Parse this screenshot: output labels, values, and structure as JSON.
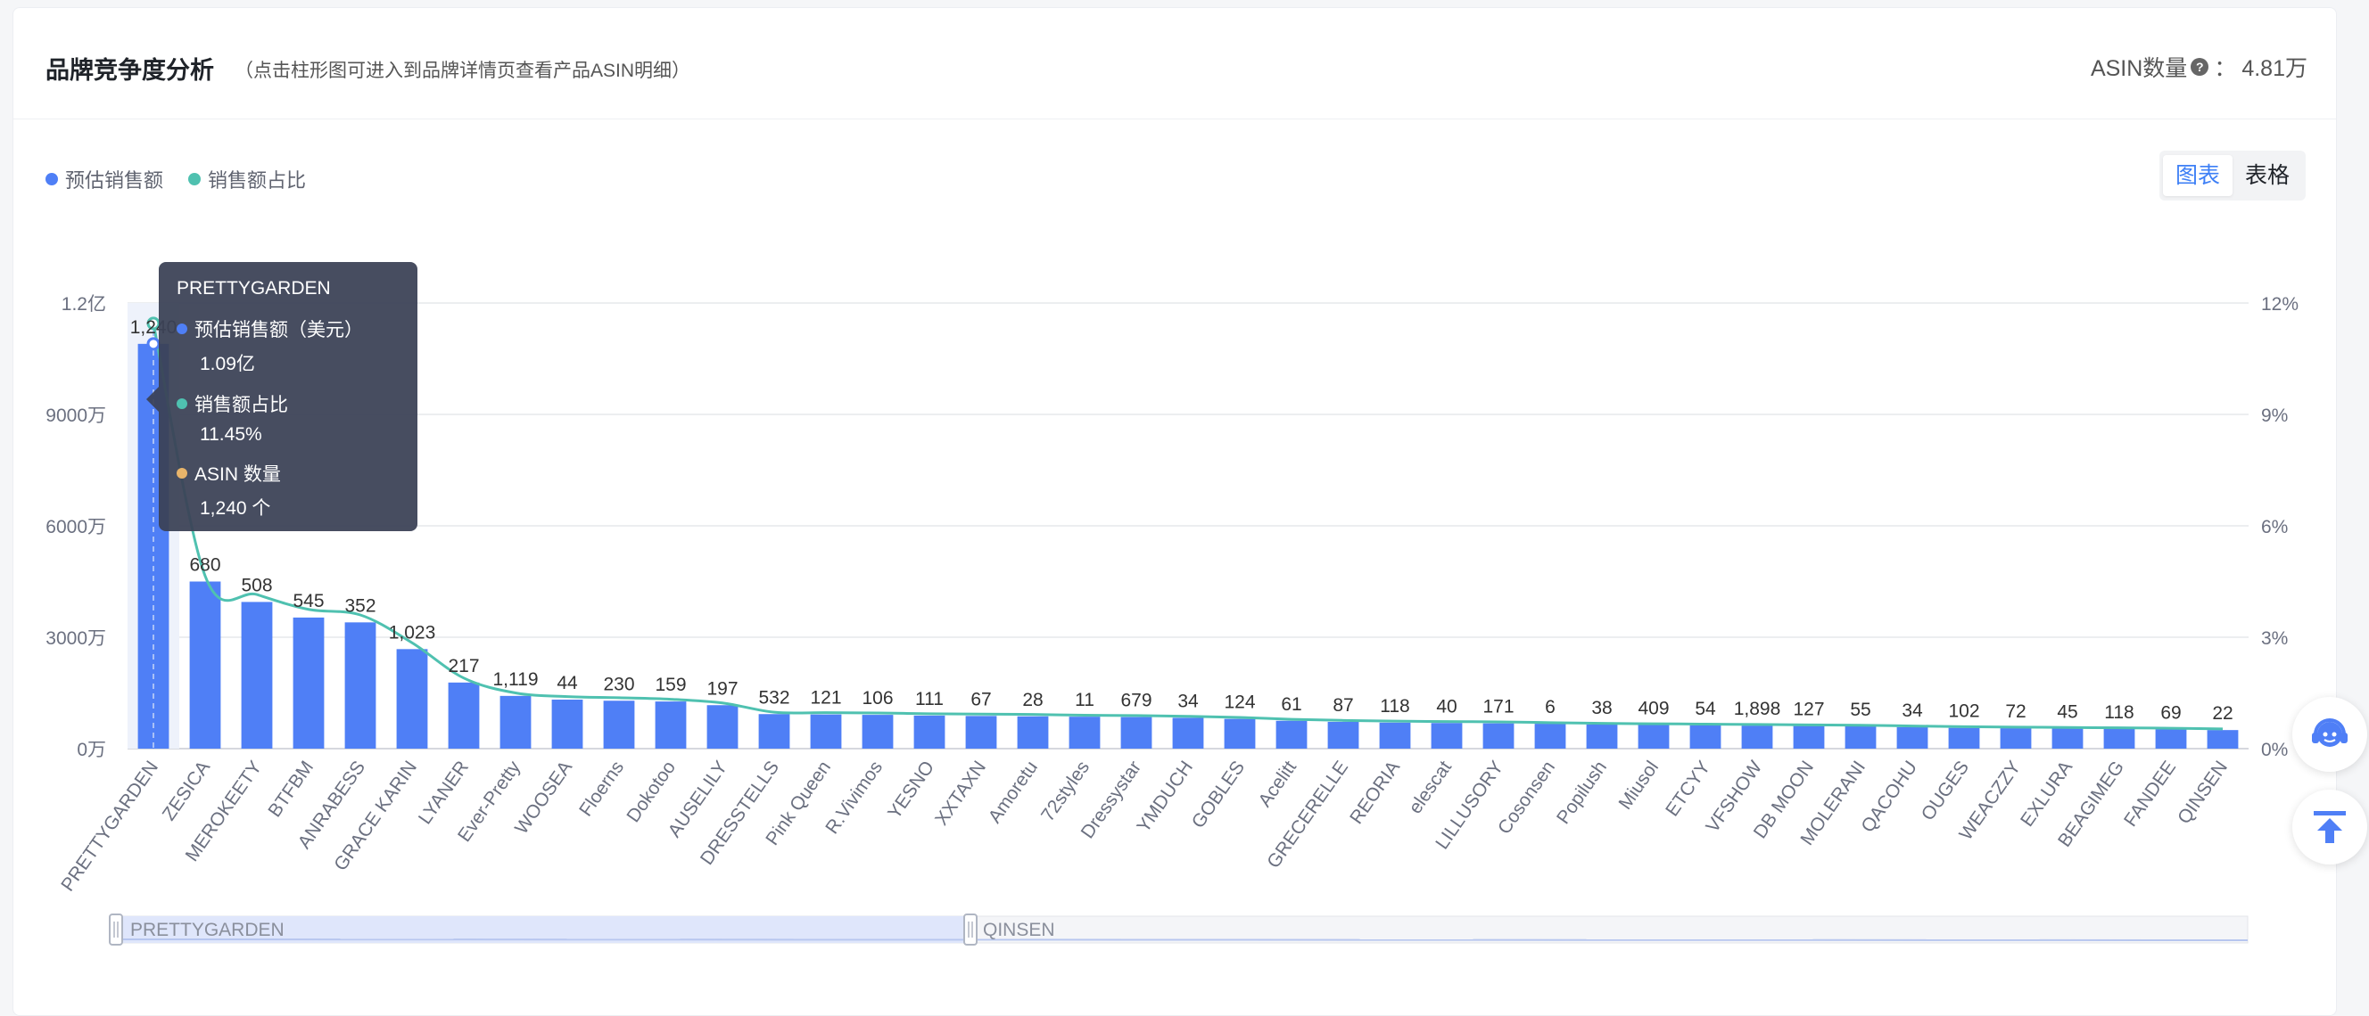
{
  "header": {
    "title": "品牌竞争度分析",
    "subtitle": "（点击柱形图可进入到品牌详情页查看产品ASIN明细）",
    "asin_label": "ASIN数量",
    "asin_sep": "：",
    "asin_value": "4.81万"
  },
  "legend": [
    {
      "label": "预估销售额",
      "color": "#4f7ff6"
    },
    {
      "label": "销售额占比",
      "color": "#4fc1b0"
    }
  ],
  "toggle": {
    "chart": "图表",
    "table": "表格"
  },
  "tooltip": {
    "brand": "PRETTYGARDEN",
    "sales_label": "预估销售额（美元）",
    "sales_value": "1.09亿",
    "share_label": "销售额占比",
    "share_value": "11.45%",
    "asin_label": "ASIN 数量",
    "asin_value": "1,240 个",
    "asin_color": "#e8b46a"
  },
  "zoom": {
    "start": "PRETTYGARDEN",
    "end": "QINSEN"
  },
  "colors": {
    "bar": "#4f7ff6",
    "line": "#4fc1b0"
  },
  "chart_data": {
    "type": "bar",
    "categories": [
      "PRETTYGARDEN",
      "ZESICA",
      "MEROKEETY",
      "BTFBM",
      "ANRABESS",
      "GRACE KARIN",
      "LYANER",
      "Ever-Pretty",
      "WOOSEA",
      "Floerns",
      "Dokotoo",
      "AUSELILY",
      "DRESSTELLS",
      "Pink Queen",
      "R.Vivimos",
      "YESNO",
      "XXTAXN",
      "Amoretu",
      "72styles",
      "Dressystar",
      "YMDUCH",
      "GOBLES",
      "Acelitt",
      "GRECERELLE",
      "REORIA",
      "elescat",
      "LILLUSORY",
      "Cosonsen",
      "Popilush",
      "Miusol",
      "ETCYY",
      "VFSHOW",
      "DB MOON",
      "MOLERANI",
      "QACOHU",
      "OUGES",
      "WEACZZY",
      "EXLURA",
      "BEAGIMEG",
      "FANDEE",
      "QINSEN"
    ],
    "series": [
      {
        "name": "预估销售额",
        "axis": "left",
        "values": [
          10900,
          4500,
          3950,
          3530,
          3400,
          2680,
          1780,
          1420,
          1320,
          1290,
          1270,
          1170,
          930,
          920,
          910,
          890,
          880,
          870,
          860,
          850,
          830,
          800,
          750,
          720,
          700,
          690,
          680,
          670,
          650,
          640,
          630,
          620,
          610,
          600,
          580,
          560,
          550,
          540,
          530,
          520,
          500
        ]
      },
      {
        "name": "销售额占比",
        "axis": "right",
        "unit": "%",
        "values": [
          11.45,
          4.65,
          4.15,
          3.75,
          3.6,
          2.85,
          1.9,
          1.5,
          1.4,
          1.37,
          1.33,
          1.23,
          0.98,
          0.97,
          0.96,
          0.94,
          0.93,
          0.92,
          0.9,
          0.89,
          0.87,
          0.84,
          0.79,
          0.76,
          0.74,
          0.73,
          0.72,
          0.7,
          0.68,
          0.67,
          0.66,
          0.65,
          0.64,
          0.63,
          0.61,
          0.59,
          0.58,
          0.57,
          0.56,
          0.55,
          0.53
        ]
      }
    ],
    "asin_counts": [
      "1,240",
      "680",
      "508",
      "545",
      "352",
      "1,023",
      "217",
      "1,119",
      "44",
      "230",
      "159",
      "197",
      "532",
      "121",
      "106",
      "111",
      "67",
      "28",
      "11",
      "679",
      "34",
      "124",
      "61",
      "87",
      "118",
      "40",
      "171",
      "6",
      "38",
      "409",
      "54",
      "1,898",
      "127",
      "55",
      "34",
      "102",
      "72",
      "45",
      "118",
      "69",
      "22"
    ],
    "y_left": {
      "ticks": [
        "0万",
        "3000万",
        "6000万",
        "9000万",
        "1.2亿"
      ],
      "range": [
        0,
        12000
      ]
    },
    "y_right": {
      "ticks": [
        "0%",
        "3%",
        "6%",
        "9%",
        "12%"
      ],
      "range": [
        0,
        12
      ]
    },
    "grid": true,
    "legend_position": "top-left"
  }
}
